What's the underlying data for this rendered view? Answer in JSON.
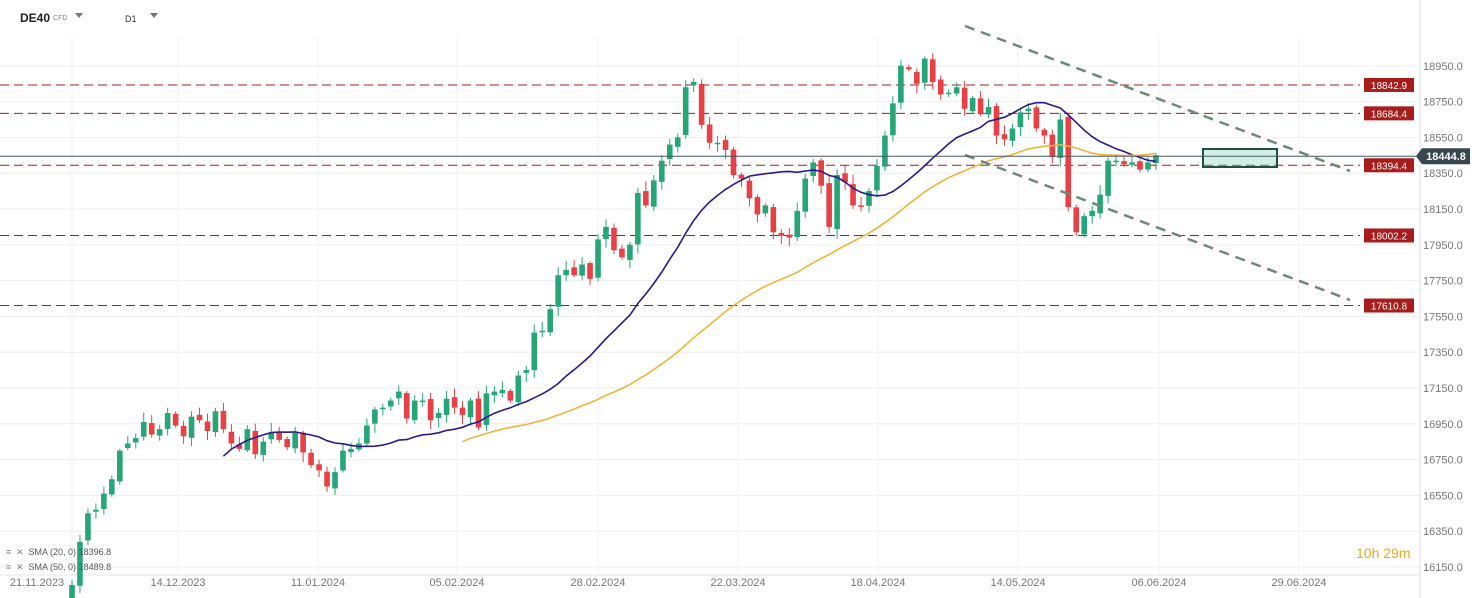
{
  "toolbar": {
    "symbol": "DE40",
    "symbol_type": "CFD",
    "timeframe": "D1"
  },
  "timer": {
    "hours": "10h",
    "minutes": "29m"
  },
  "indicators": [
    {
      "label": "SMA (20, 0)",
      "value": "18396.8",
      "color": "#2b1a8c"
    },
    {
      "label": "SMA (50, 0)",
      "value": "18489.8",
      "color": "#f0b43c"
    }
  ],
  "chart_data": {
    "type": "candlestick",
    "ylim": [
      16150,
      19150
    ],
    "y_ticks": [
      18950,
      18750,
      18550,
      18350,
      18150,
      17950,
      17750,
      17550,
      17350,
      17150,
      16950,
      16750,
      16550,
      16350,
      16150
    ],
    "x_ticks": [
      "21.11.2023",
      "14.12.2023",
      "11.01.2024",
      "05.02.2024",
      "28.02.2024",
      "22.03.2024",
      "18.04.2024",
      "14.05.2024",
      "06.06.2024",
      "29.06.2024"
    ],
    "current_price": 18444.8,
    "levels": [
      18842.9,
      18684.4,
      18394.4,
      18002.2,
      17610.8
    ],
    "closes": [
      16050,
      16290,
      16450,
      16470,
      16560,
      16640,
      16800,
      16840,
      16870,
      16960,
      16890,
      16920,
      17010,
      16940,
      16880,
      16990,
      16970,
      16910,
      17020,
      16920,
      16840,
      16810,
      16920,
      16780,
      16850,
      16900,
      16860,
      16820,
      16900,
      16790,
      16720,
      16690,
      16600,
      16680,
      16800,
      16810,
      16840,
      16940,
      17030,
      17040,
      17080,
      17130,
      16980,
      17080,
      17080,
      16970,
      17010,
      17090,
      17040,
      17000,
      17080,
      16930,
      17120,
      17130,
      17140,
      17080,
      17220,
      17250,
      17460,
      17470,
      17590,
      17780,
      17810,
      17780,
      17840,
      17760,
      17980,
      18050,
      17920,
      17880,
      17950,
      18240,
      18170,
      18310,
      18420,
      18510,
      18550,
      18830,
      18860,
      18620,
      18520,
      18520,
      18480,
      18340,
      18320,
      18210,
      18120,
      18170,
      18020,
      18000,
      17990,
      18140,
      18320,
      18410,
      18280,
      18050,
      18340,
      18300,
      18170,
      18170,
      18250,
      18390,
      18560,
      18740,
      18950,
      18930,
      18850,
      18990,
      18860,
      18790,
      18800,
      18830,
      18710,
      18770,
      18680,
      18720,
      18560,
      18540,
      18600,
      18690,
      18710,
      18600,
      18560,
      18440,
      18650,
      18160,
      18020,
      18110,
      18140,
      18230,
      18420,
      18420,
      18400,
      18410,
      18370,
      18410,
      18450
    ]
  },
  "price_labels": {
    "y_axis": [
      "18950.0",
      "18750.0",
      "18550.0",
      "18350.0",
      "18150.0",
      "17950.0",
      "17750.0",
      "17550.0",
      "17350.0",
      "17150.0",
      "16950.0",
      "16750.0",
      "16550.0",
      "16350.0",
      "16150.0"
    ],
    "levels": [
      "18842.9",
      "18684.4",
      "18394.4",
      "18002.2",
      "17610.8"
    ],
    "current": "18444.8"
  },
  "colors": {
    "up": "#26a677",
    "down": "#e84045",
    "level": "#a81c1c",
    "sma20": "#2b1a8c",
    "sma50": "#f0b43c",
    "channel": "#6d8a78"
  }
}
